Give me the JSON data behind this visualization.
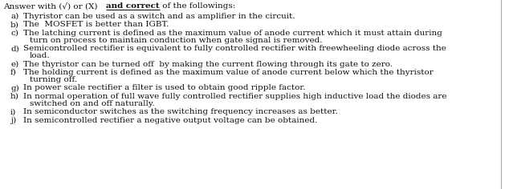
{
  "background_color": "#ffffff",
  "text_color": "#111111",
  "font_size": 7.5,
  "title_part1": "Answer with (√) or (X) ",
  "title_part2": "and correct",
  "title_part3": " of the followings:",
  "items": [
    {
      "label": "a)",
      "lines": [
        "Thyristor can be used as a switch and as amplifier in the circuit."
      ]
    },
    {
      "label": "b)",
      "lines": [
        "The  MOSFET is better than IGBT."
      ]
    },
    {
      "label": "c)",
      "lines": [
        "The latching current is defined as the maximum value of anode current which it must attain during",
        "turn on process to maintain conduction when gate signal is removed."
      ]
    },
    {
      "label": "d)",
      "lines": [
        "Semicontrolled rectifier is equivalent to fully controlled rectifier with freewheeling diode across the",
        "load."
      ]
    },
    {
      "label": "e)",
      "lines": [
        "The thyristor can be turned off  by making the current flowing through its gate to zero."
      ]
    },
    {
      "label": "f)",
      "lines": [
        "The holding current is defined as the maximum value of anode current below which the thyristor",
        "turning off."
      ]
    },
    {
      "label": "g)",
      "lines": [
        "In power scale rectifier a filter is used to obtain good ripple factor."
      ]
    },
    {
      "label": "h)",
      "lines": [
        "In normal operation of full wave fully controlled rectifier supplies high inductive load the diodes are",
        "switched on and off naturally."
      ]
    },
    {
      "label": "i)",
      "lines": [
        "In semiconductor switches as the switching frequency increases as better."
      ]
    },
    {
      "label": "j)",
      "lines": [
        "In semicontrolled rectifier a negative output voltage can be obtained."
      ]
    }
  ]
}
